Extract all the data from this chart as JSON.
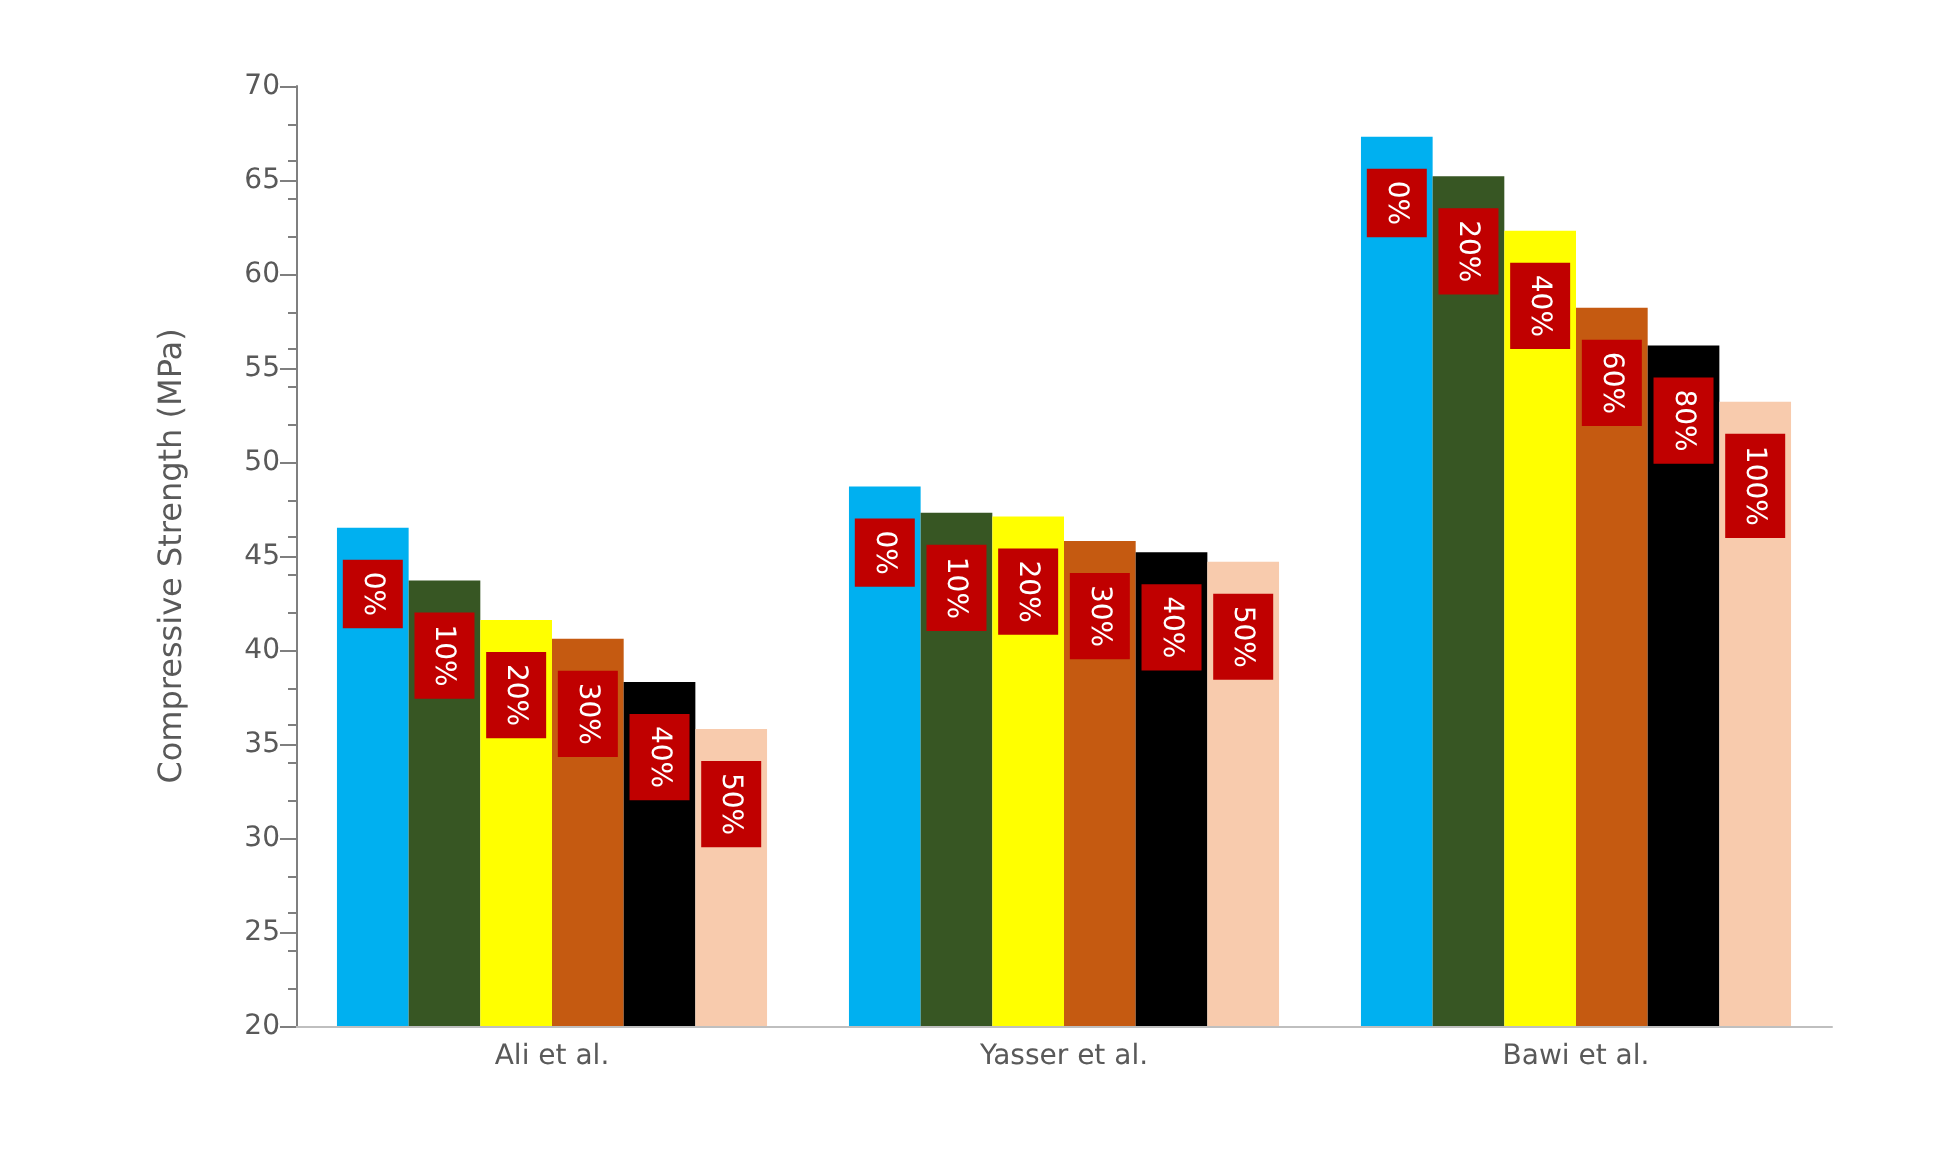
{
  "chart_data": {
    "type": "bar",
    "ylabel": "Compressive Strength (MPa)",
    "categories": [
      "Ali et al.",
      "Yasser et al.",
      "Bawi et al."
    ],
    "series": [
      {
        "color": "#00b0f0",
        "values": [
          46.5,
          48.7,
          67.3
        ]
      },
      {
        "color": "#375623",
        "values": [
          43.7,
          47.3,
          65.2
        ]
      },
      {
        "color": "#ffff00",
        "values": [
          41.6,
          47.1,
          62.3
        ]
      },
      {
        "color": "#c55a11",
        "values": [
          40.6,
          45.8,
          58.2
        ]
      },
      {
        "color": "#000000",
        "values": [
          38.3,
          45.2,
          56.2
        ]
      },
      {
        "color": "#f8cbad",
        "values": [
          35.8,
          44.7,
          53.2
        ]
      }
    ],
    "annotations": [
      "0%",
      "0%",
      "0%",
      "10%",
      "10%",
      "20%",
      "20%",
      "20%",
      "40%",
      "30%",
      "30%",
      "60%",
      "40%",
      "40%",
      "80%",
      "50%",
      "50%",
      "100%"
    ],
    "ylim": [
      20,
      70
    ],
    "yticks": [
      20,
      25,
      30,
      35,
      40,
      45,
      50,
      55,
      60,
      65,
      70
    ],
    "grid": false
  }
}
